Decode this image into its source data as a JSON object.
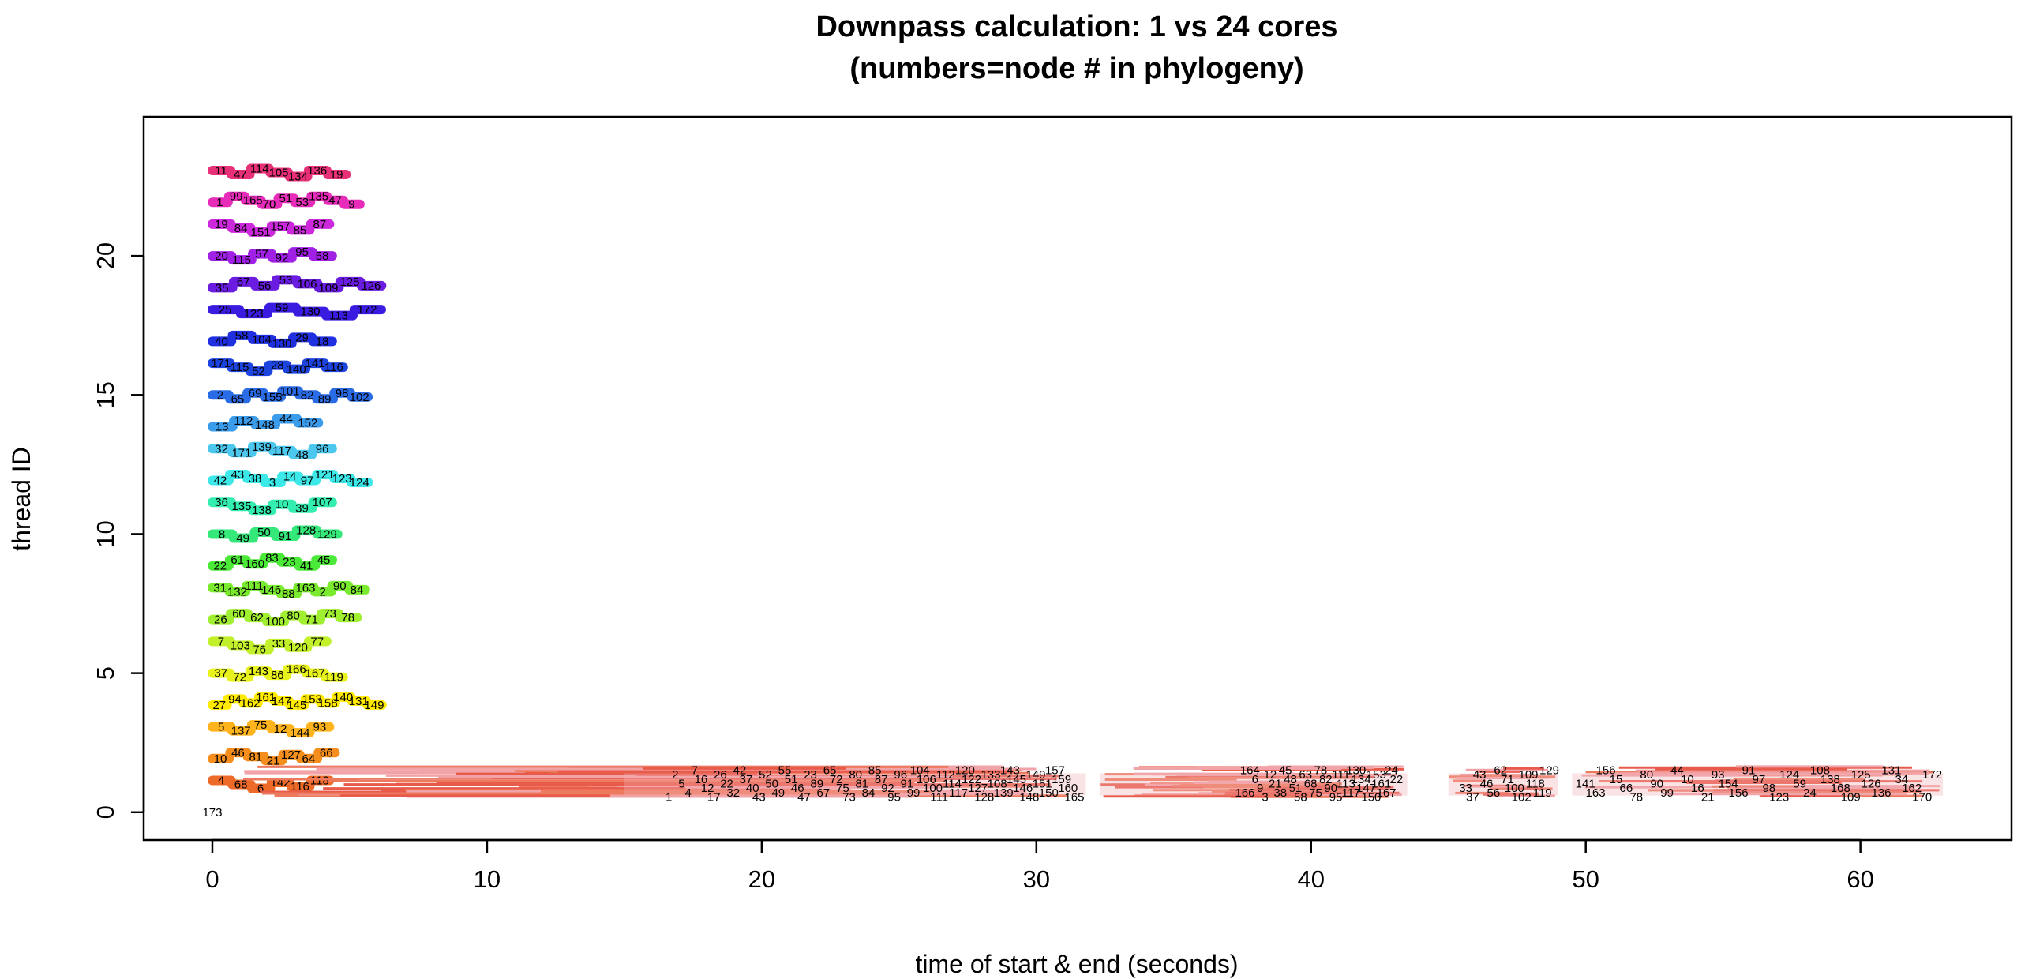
{
  "chart_data": {
    "type": "scatter",
    "title": "Downpass calculation: 1 vs 24 cores",
    "subtitle": "(numbers=node # in phylogeny)",
    "xlabel": "time of start & end (seconds)",
    "ylabel": "thread ID",
    "xlim": [
      -2.5,
      65.5
    ],
    "ylim": [
      -1.0,
      25.0
    ],
    "x_ticks": [
      "0",
      "10",
      "20",
      "30",
      "40",
      "50",
      "60"
    ],
    "y_ticks": [
      "0",
      "5",
      "10",
      "15",
      "20"
    ],
    "grid": false,
    "legend": "none",
    "series_colors": [
      "#E8273C",
      "#EE6A28",
      "#F58E1C",
      "#FFB31C",
      "#FFEA00",
      "#E8F21C",
      "#C2F02A",
      "#A0EF30",
      "#7AEA2E",
      "#4CEA38",
      "#34E87A",
      "#34EDB0",
      "#3CE8E8",
      "#4CC8EE",
      "#3C9CEC",
      "#2A6CE6",
      "#1E44E0",
      "#2030E0",
      "#3A1CE0",
      "#6A1CE0",
      "#A020E6",
      "#CC28DC",
      "#E62CB8",
      "#E83078"
    ],
    "single_core_color": "#EE7A5E",
    "threads": [
      {
        "thread": 1,
        "start": 0.0,
        "end": 4.3,
        "nodes": [
          "4",
          "68",
          "6",
          "142",
          "116",
          "118"
        ]
      },
      {
        "thread": 2,
        "start": 0.0,
        "end": 4.5,
        "nodes": [
          "10",
          "46",
          "81",
          "21",
          "127",
          "64",
          "66"
        ]
      },
      {
        "thread": 3,
        "start": 0.0,
        "end": 4.3,
        "nodes": [
          "5",
          "137",
          "75",
          "12",
          "144",
          "93"
        ]
      },
      {
        "thread": 4,
        "start": 0.0,
        "end": 6.2,
        "nodes": [
          "27",
          "94",
          "162",
          "161",
          "147",
          "145",
          "153",
          "158",
          "140",
          "131",
          "149"
        ]
      },
      {
        "thread": 5,
        "start": 0.0,
        "end": 4.8,
        "nodes": [
          "37",
          "72",
          "143",
          "86",
          "166",
          "167",
          "119"
        ]
      },
      {
        "thread": 6,
        "start": 0.0,
        "end": 4.2,
        "nodes": [
          "7",
          "103",
          "76",
          "33",
          "120",
          "77"
        ]
      },
      {
        "thread": 7,
        "start": 0.0,
        "end": 5.3,
        "nodes": [
          "26",
          "60",
          "62",
          "100",
          "80",
          "71",
          "73",
          "78"
        ]
      },
      {
        "thread": 8,
        "start": 0.0,
        "end": 5.6,
        "nodes": [
          "31",
          "132",
          "111",
          "146",
          "88",
          "163",
          "2",
          "90",
          "84"
        ]
      },
      {
        "thread": 9,
        "start": 0.0,
        "end": 4.4,
        "nodes": [
          "22",
          "61",
          "160",
          "83",
          "23",
          "41",
          "45"
        ]
      },
      {
        "thread": 10,
        "start": 0.0,
        "end": 4.6,
        "nodes": [
          "8",
          "49",
          "50",
          "91",
          "128",
          "129"
        ]
      },
      {
        "thread": 11,
        "start": 0.0,
        "end": 4.4,
        "nodes": [
          "36",
          "135",
          "138",
          "10",
          "39",
          "107"
        ]
      },
      {
        "thread": 12,
        "start": 0.0,
        "end": 5.7,
        "nodes": [
          "42",
          "43",
          "38",
          "3",
          "14",
          "97",
          "121",
          "123",
          "124"
        ]
      },
      {
        "thread": 13,
        "start": 0.0,
        "end": 4.4,
        "nodes": [
          "32",
          "171",
          "139",
          "117",
          "48",
          "96"
        ]
      },
      {
        "thread": 14,
        "start": 0.0,
        "end": 3.9,
        "nodes": [
          "13",
          "112",
          "148",
          "44",
          "152"
        ]
      },
      {
        "thread": 15,
        "start": 0.0,
        "end": 5.7,
        "nodes": [
          "2",
          "65",
          "69",
          "155",
          "101",
          "82",
          "89",
          "98",
          "102"
        ]
      },
      {
        "thread": 16,
        "start": 0.0,
        "end": 4.8,
        "nodes": [
          "171",
          "115",
          "52",
          "28",
          "140",
          "141",
          "116"
        ]
      },
      {
        "thread": 17,
        "start": 0.0,
        "end": 4.4,
        "nodes": [
          "40",
          "58",
          "104",
          "130",
          "29",
          "18"
        ]
      },
      {
        "thread": 18,
        "start": 0.0,
        "end": 6.2,
        "nodes": [
          "25",
          "123",
          "59",
          "130",
          "113",
          "172"
        ]
      },
      {
        "thread": 19,
        "start": 0.0,
        "end": 6.2,
        "nodes": [
          "35",
          "67",
          "56",
          "53",
          "106",
          "109",
          "125",
          "126"
        ]
      },
      {
        "thread": 20,
        "start": 0.0,
        "end": 4.4,
        "nodes": [
          "20",
          "115",
          "57",
          "92",
          "95",
          "58"
        ]
      },
      {
        "thread": 21,
        "start": 0.0,
        "end": 4.3,
        "nodes": [
          "19",
          "84",
          "151",
          "157",
          "85",
          "87"
        ]
      },
      {
        "thread": 22,
        "start": 0.0,
        "end": 5.4,
        "nodes": [
          "1",
          "99",
          "165",
          "70",
          "51",
          "53",
          "135",
          "47",
          "9"
        ]
      },
      {
        "thread": 23,
        "start": 0.0,
        "end": 4.9,
        "nodes": [
          "11",
          "47",
          "114",
          "105",
          "134",
          "136",
          "19"
        ]
      }
    ],
    "single_core": {
      "thread": 0,
      "start_label": "173",
      "nodes": [
        "1",
        "2",
        "5",
        "4",
        "7",
        "16",
        "12",
        "17",
        "26",
        "22",
        "32",
        "42",
        "37",
        "40",
        "43",
        "52",
        "50",
        "49",
        "55",
        "51",
        "46",
        "47",
        "23",
        "89",
        "67",
        "65",
        "72",
        "75",
        "73",
        "80",
        "81",
        "84",
        "85",
        "87",
        "92",
        "95",
        "96",
        "91",
        "99",
        "104",
        "106",
        "100",
        "111",
        "112",
        "114",
        "117",
        "120",
        "122",
        "127",
        "128",
        "133",
        "108",
        "139",
        "143",
        "145",
        "146",
        "148",
        "149",
        "151",
        "150",
        "157",
        "159",
        "160",
        "165",
        "166",
        "164",
        "6",
        "9",
        "3",
        "12",
        "21",
        "38",
        "45",
        "48",
        "51",
        "58",
        "63",
        "68",
        "75",
        "78",
        "82",
        "90",
        "95",
        "111",
        "113",
        "117",
        "130",
        "134",
        "147",
        "150",
        "153",
        "161",
        "167",
        "24",
        "22",
        "33",
        "37",
        "43",
        "46",
        "56",
        "62",
        "71",
        "100",
        "102",
        "109",
        "118",
        "119",
        "129",
        "141",
        "163",
        "156",
        "15",
        "66",
        "78",
        "80",
        "90",
        "99",
        "44",
        "10",
        "16",
        "21",
        "93",
        "154",
        "156",
        "91",
        "97",
        "98",
        "123",
        "124",
        "59",
        "24",
        "108",
        "138",
        "168",
        "109",
        "125",
        "126",
        "136",
        "131",
        "34",
        "162",
        "170",
        "172"
      ]
    }
  }
}
